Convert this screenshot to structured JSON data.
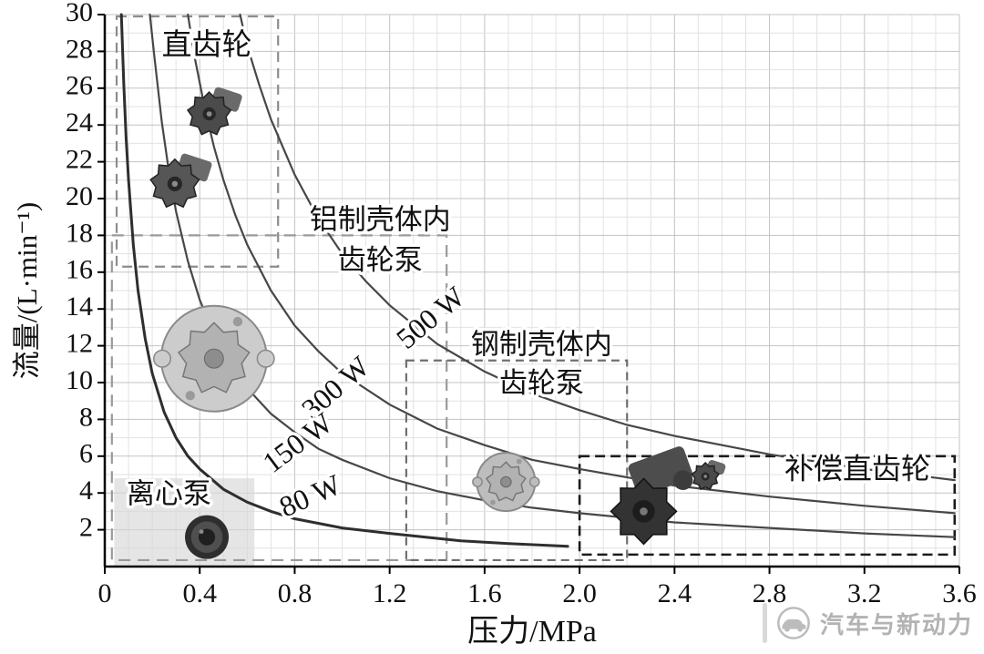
{
  "watermark": {
    "text": "汽车与新动力"
  },
  "chart_data": {
    "type": "line",
    "title": "",
    "xlabel": "压力/MPa",
    "ylabel": "流量/(L·min⁻¹)",
    "xlim": [
      0,
      3.6
    ],
    "ylim": [
      0,
      30
    ],
    "grid": true,
    "legend_position": "none",
    "x_ticks": {
      "values": [
        0,
        0.4,
        0.8,
        1.2,
        1.6,
        2.0,
        2.4,
        2.8,
        3.2,
        3.6
      ],
      "labels": [
        "0",
        "0.4",
        "0.8",
        "1.2",
        "1.6",
        "2.0",
        "2.4",
        "2.8",
        "3.2",
        "3.6"
      ]
    },
    "y_ticks": {
      "values": [
        2,
        4,
        6,
        8,
        10,
        12,
        14,
        16,
        18,
        20,
        22,
        24,
        26,
        28,
        30
      ],
      "labels": [
        "2",
        "4",
        "6",
        "8",
        "10",
        "12",
        "14",
        "16",
        "18",
        "20",
        "22",
        "24",
        "26",
        "28",
        "30"
      ]
    },
    "series": [
      {
        "key": "curve-80w",
        "name": "80 W",
        "color": "#2e2e2e",
        "width": 3,
        "points": [
          [
            0.07,
            30
          ],
          [
            0.08,
            26.3
          ],
          [
            0.09,
            23.3
          ],
          [
            0.1,
            21
          ],
          [
            0.12,
            17.5
          ],
          [
            0.14,
            15
          ],
          [
            0.17,
            12.4
          ],
          [
            0.2,
            10.5
          ],
          [
            0.25,
            8.4
          ],
          [
            0.3,
            7
          ],
          [
            0.35,
            6
          ],
          [
            0.4,
            5.3
          ],
          [
            0.5,
            4.2
          ],
          [
            0.6,
            3.5
          ],
          [
            0.7,
            3
          ],
          [
            0.8,
            2.6
          ],
          [
            1,
            2.1
          ],
          [
            1.2,
            1.8
          ],
          [
            1.5,
            1.4
          ],
          [
            1.7,
            1.25
          ],
          [
            1.95,
            1.1
          ]
        ]
      },
      {
        "key": "curve-150w",
        "name": "150 W",
        "color": "#474747",
        "width": 2.2,
        "points": [
          [
            0.19,
            30
          ],
          [
            0.21,
            27.6
          ],
          [
            0.24,
            24.2
          ],
          [
            0.27,
            21.5
          ],
          [
            0.3,
            19.3
          ],
          [
            0.35,
            16.6
          ],
          [
            0.4,
            14.5
          ],
          [
            0.45,
            12.9
          ],
          [
            0.5,
            11.6
          ],
          [
            0.6,
            9.7
          ],
          [
            0.7,
            8.3
          ],
          [
            0.8,
            7.3
          ],
          [
            0.9,
            6.4
          ],
          [
            1,
            5.8
          ],
          [
            1.2,
            4.8
          ],
          [
            1.4,
            4.1
          ],
          [
            1.6,
            3.6
          ],
          [
            1.8,
            3.2
          ],
          [
            2,
            2.9
          ],
          [
            2.4,
            2.4
          ],
          [
            2.8,
            2.1
          ],
          [
            3.2,
            1.8
          ],
          [
            3.58,
            1.6
          ]
        ]
      },
      {
        "key": "curve-300w",
        "name": "300 W",
        "color": "#474747",
        "width": 2.2,
        "points": [
          [
            0.35,
            30
          ],
          [
            0.38,
            27.6
          ],
          [
            0.42,
            25
          ],
          [
            0.46,
            22.8
          ],
          [
            0.5,
            21
          ],
          [
            0.55,
            19.1
          ],
          [
            0.6,
            17.5
          ],
          [
            0.7,
            15
          ],
          [
            0.8,
            13.1
          ],
          [
            0.9,
            11.7
          ],
          [
            1,
            10.5
          ],
          [
            1.2,
            8.8
          ],
          [
            1.4,
            7.5
          ],
          [
            1.6,
            6.6
          ],
          [
            1.8,
            5.8
          ],
          [
            2,
            5.3
          ],
          [
            2.4,
            4.4
          ],
          [
            2.8,
            3.8
          ],
          [
            3.2,
            3.3
          ],
          [
            3.58,
            2.9
          ]
        ]
      },
      {
        "key": "curve-500w",
        "name": "500 W",
        "color": "#474747",
        "width": 2.2,
        "points": [
          [
            0.57,
            30
          ],
          [
            0.6,
            28.3
          ],
          [
            0.65,
            26.2
          ],
          [
            0.7,
            24.3
          ],
          [
            0.8,
            21.3
          ],
          [
            0.9,
            18.9
          ],
          [
            1,
            17
          ],
          [
            1.1,
            15.5
          ],
          [
            1.2,
            14.2
          ],
          [
            1.4,
            12.1
          ],
          [
            1.6,
            10.6
          ],
          [
            1.8,
            9.4
          ],
          [
            2,
            8.5
          ],
          [
            2.2,
            7.7
          ],
          [
            2.4,
            7.1
          ],
          [
            2.8,
            6.1
          ],
          [
            3.2,
            5.3
          ],
          [
            3.58,
            4.7
          ]
        ]
      }
    ],
    "regions": [
      {
        "key": "region-centrifugal-pump",
        "label": "离心泵",
        "x1": 0.04,
        "y1": 0.05,
        "x2": 0.63,
        "y2": 4.8,
        "fill": "#d7d7d7"
      },
      {
        "key": "region-aluminum-internal-gear-pump",
        "label": "铝制壳体内齿轮泵",
        "x1": 0.03,
        "y1": 0.35,
        "x2": 1.44,
        "y2": 18,
        "stroke": "#9a9a9a",
        "dash": "13 8",
        "width": 2.2
      },
      {
        "key": "region-spur-gear",
        "label": "直齿轮",
        "x1": 0.05,
        "y1": 16.3,
        "x2": 0.73,
        "y2": 29.9,
        "stroke": "#8c8c8c",
        "dash": "11 7",
        "width": 2.2
      },
      {
        "key": "region-steel-internal-gear-pump",
        "label": "钢制壳体内齿轮泵",
        "x1": 1.27,
        "y1": 0.35,
        "x2": 2.2,
        "y2": 11.2,
        "stroke": "#6f6f6f",
        "dash": "9 6",
        "width": 2.2
      },
      {
        "key": "region-compensated-spur-gear",
        "label": "补偿直齿轮",
        "x1": 2.0,
        "y1": 0.65,
        "x2": 3.58,
        "y2": 6.0,
        "stroke": "#1c1c1c",
        "dash": "11 6",
        "width": 2.6
      }
    ],
    "annotations": [
      {
        "key": "label-spur-gear",
        "text": "直齿轮",
        "x": 0.43,
        "y": 28.2,
        "size": 33,
        "angle": 0
      },
      {
        "key": "label-aluminum-line1",
        "text": "铝制壳体内",
        "x": 1.16,
        "y": 18.7,
        "size": 31,
        "angle": 0
      },
      {
        "key": "label-aluminum-line2",
        "text": "齿轮泵",
        "x": 1.16,
        "y": 16.5,
        "size": 31,
        "angle": 0
      },
      {
        "key": "label-steel-line1",
        "text": "钢制壳体内",
        "x": 1.84,
        "y": 11.9,
        "size": 31,
        "angle": 0
      },
      {
        "key": "label-steel-line2",
        "text": "齿轮泵",
        "x": 1.84,
        "y": 9.8,
        "size": 31,
        "angle": 0
      },
      {
        "key": "label-compensated",
        "text": "补偿直齿轮",
        "x": 3.17,
        "y": 5.15,
        "size": 32,
        "angle": 0
      },
      {
        "key": "label-centrifugal",
        "text": "离心泵",
        "x": 0.27,
        "y": 3.8,
        "size": 31,
        "angle": 0
      },
      {
        "key": "label-500w",
        "text": "500 W",
        "x": 1.38,
        "y": 13.4,
        "size": 32,
        "angle": -40
      },
      {
        "key": "label-300w",
        "text": "300 W",
        "x": 0.98,
        "y": 9.6,
        "size": 32,
        "angle": -41
      },
      {
        "key": "label-150w",
        "text": "150 W",
        "x": 0.82,
        "y": 6.6,
        "size": 32,
        "angle": -37
      },
      {
        "key": "label-80w",
        "text": "80 W",
        "x": 0.87,
        "y": 3.7,
        "size": 32,
        "angle": -24
      }
    ],
    "pumps": [
      {
        "key": "spur-gear-pump-small-icon",
        "type": "gear",
        "x": 0.44,
        "y": 24.6,
        "r": 24,
        "fill": "#4b4b4b"
      },
      {
        "key": "spur-gear-pump-large-icon",
        "type": "gear",
        "x": 0.295,
        "y": 20.8,
        "r": 27,
        "fill": "#565656"
      },
      {
        "key": "aluminum-gerotor-pump-icon",
        "type": "gerotor",
        "x": 0.46,
        "y": 11.3,
        "r": 58,
        "fill": "#cccccc"
      },
      {
        "key": "steel-gerotor-pump-icon",
        "type": "gerotor",
        "x": 1.69,
        "y": 4.6,
        "r": 32,
        "fill": "#bdbdbd"
      },
      {
        "key": "compensated-pump-assembly-icon",
        "type": "assembly",
        "x": 2.27,
        "y": 3.0,
        "r": 36,
        "fill": "#333333"
      },
      {
        "key": "compensated-pump-parts-icon",
        "type": "gear",
        "x": 2.53,
        "y": 4.9,
        "r": 15,
        "fill": "#4a4a4a"
      },
      {
        "key": "centrifugal-pump-icon",
        "type": "motor",
        "x": 0.43,
        "y": 1.6,
        "r": 24,
        "fill": "#2f2f2f"
      }
    ]
  }
}
